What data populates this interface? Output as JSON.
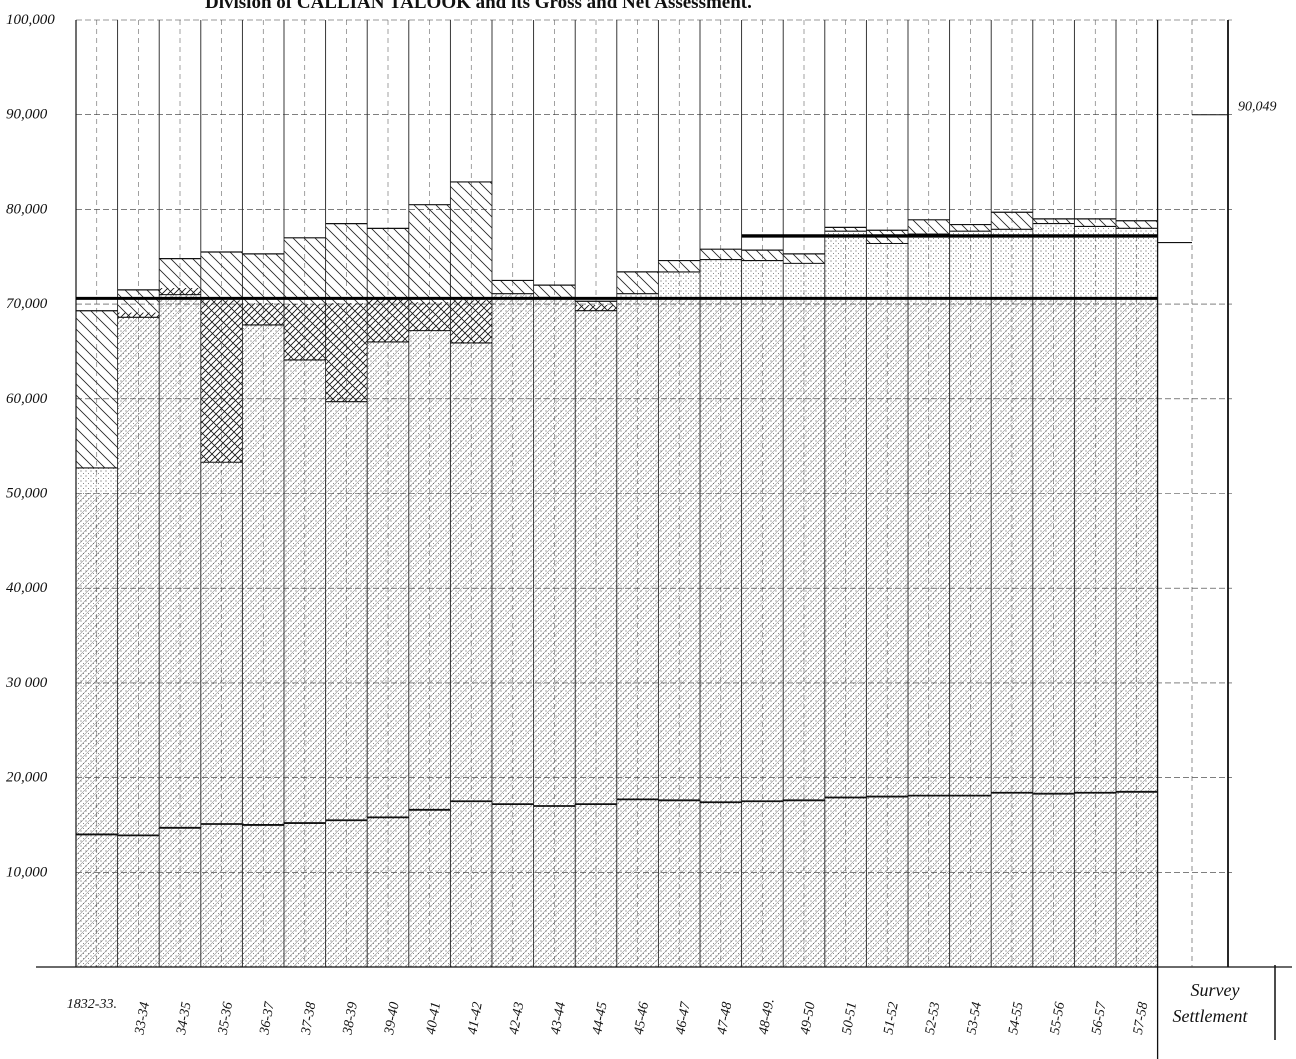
{
  "chart_data": {
    "type": "bar",
    "title": "Division of CALLIAN TALOOK and its Gross and Net Assessment.",
    "xlabel": "",
    "ylabel": "",
    "ylim": [
      0,
      100000
    ],
    "yticks": [
      {
        "value": 10000,
        "label": "10,000"
      },
      {
        "value": 20000,
        "label": "20,000"
      },
      {
        "value": 30000,
        "label": "30 000"
      },
      {
        "value": 40000,
        "label": "40,000"
      },
      {
        "value": 50000,
        "label": "50,000"
      },
      {
        "value": 60000,
        "label": "60,000"
      },
      {
        "value": 70000,
        "label": "70,000"
      },
      {
        "value": 80000,
        "label": "80,000"
      },
      {
        "value": 90000,
        "label": "90,000"
      },
      {
        "value": 100000,
        "label": "100,000"
      }
    ],
    "categories": [
      "1832-33.",
      "33-34",
      "34-35",
      "35-36",
      "36-37",
      "37-38",
      "38-39",
      "39-40",
      "40-41",
      "41-42",
      "42-43",
      "43-44",
      "44-45",
      "45-46",
      "46-47",
      "47-48",
      "48-49.",
      "49-50",
      "50-51",
      "51-52",
      "52-53",
      "53-54",
      "54-55",
      "55-56",
      "56-57",
      "57-58"
    ],
    "series": [
      {
        "values": [
          69300,
          71500,
          74800,
          75500,
          75300,
          77000,
          78500,
          78000,
          80500,
          82900,
          72500,
          72000,
          70300,
          73400,
          74600,
          75800,
          75700,
          75300,
          78100,
          77800,
          78900,
          78400,
          79700,
          79000,
          79000,
          78800
        ]
      },
      {
        "values": [
          52700,
          68600,
          71000,
          53300,
          67800,
          64100,
          59700,
          66000,
          67200,
          65900,
          71100,
          70700,
          69300,
          71100,
          73400,
          74700,
          74600,
          74300,
          77700,
          76400,
          77400,
          77700,
          77900,
          78500,
          78200,
          78000
        ]
      },
      {
        "values": [
          50000,
          69100,
          71700,
          70400,
          70100,
          70000,
          70100,
          70600,
          70200,
          70400,
          71100,
          70700,
          69900,
          70400,
          70500,
          70300,
          70300,
          70300,
          70400,
          70300,
          70200,
          70300,
          70500,
          70400,
          70300,
          70200
        ]
      },
      {
        "values": [
          14000,
          13900,
          14700,
          15100,
          15000,
          15200,
          15500,
          15800,
          16600,
          17500,
          17200,
          17000,
          17200,
          17700,
          17600,
          17400,
          17500,
          17600,
          17900,
          18000,
          18100,
          18100,
          18400,
          18300,
          18400,
          18500
        ]
      }
    ],
    "reference_lines": [
      {
        "label": "",
        "value": 70600
      },
      {
        "label": "",
        "value": 77200
      }
    ],
    "survey_settlement": {
      "label": "Survey Settlement",
      "value": 76500,
      "right_value_label": "90,049"
    },
    "grid": true
  }
}
